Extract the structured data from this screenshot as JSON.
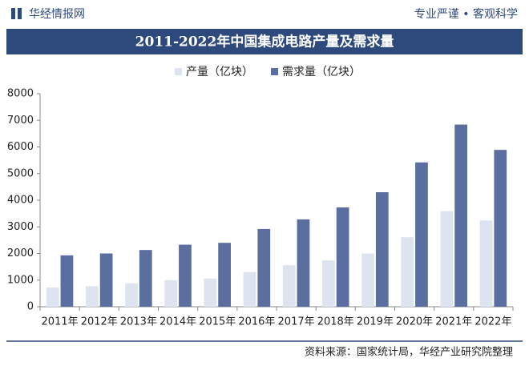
{
  "header": {
    "brand": "华经情报网",
    "slogan": "专业严谨 • 客观科学"
  },
  "chart_data": {
    "type": "bar",
    "title": "2011-2022年中国集成电路产量及需求量",
    "categories": [
      "2011年",
      "2012年",
      "2013年",
      "2014年",
      "2015年",
      "2016年",
      "2017年",
      "2018年",
      "2019年",
      "2020年",
      "2021年",
      "2022年"
    ],
    "series": [
      {
        "name": "产量（亿块）",
        "color": "#dde3ef",
        "values": [
          720,
          770,
          880,
          1000,
          1060,
          1300,
          1560,
          1740,
          2000,
          2610,
          3590,
          3240
        ]
      },
      {
        "name": "需求量（亿块）",
        "color": "#5a6e9f",
        "values": [
          1930,
          2000,
          2130,
          2330,
          2400,
          2920,
          3280,
          3730,
          4300,
          5420,
          6840,
          5890
        ]
      }
    ],
    "ylim": [
      0,
      8000
    ],
    "yticks": [
      0,
      1000,
      2000,
      3000,
      4000,
      5000,
      6000,
      7000,
      8000
    ],
    "grid": false,
    "legend": "top"
  },
  "footer": {
    "source": "资料来源：国家统计局，华经产业研究院整理"
  }
}
